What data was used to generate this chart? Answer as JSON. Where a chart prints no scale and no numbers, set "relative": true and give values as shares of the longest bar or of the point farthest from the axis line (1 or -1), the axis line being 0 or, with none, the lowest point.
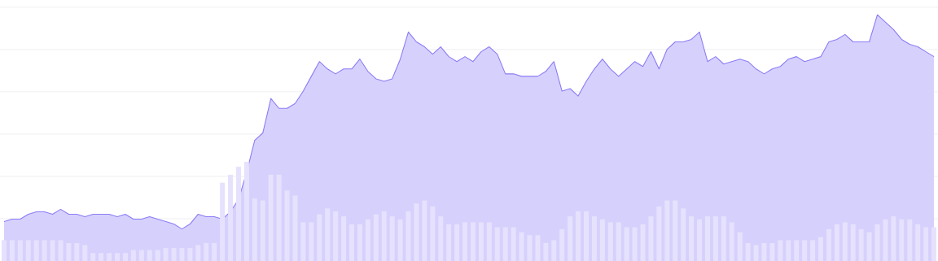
{
  "chart_data": [
    {
      "type": "area",
      "relative": true,
      "grid": "y",
      "color": "#8b7cf6",
      "categories": [
        null,
        null,
        null,
        null,
        null,
        null,
        null,
        null,
        null,
        null,
        null,
        null,
        null,
        null,
        null,
        null,
        null,
        null,
        null,
        null,
        null,
        null,
        null,
        null,
        null,
        null,
        null,
        null,
        null,
        null,
        null,
        null,
        null,
        null,
        null,
        null,
        null,
        null,
        null,
        null,
        null,
        null,
        null,
        null,
        null,
        null,
        null,
        null,
        null,
        null,
        null,
        null,
        null,
        null,
        null,
        null,
        null,
        null,
        null,
        null,
        null,
        null,
        null,
        null,
        null,
        null,
        null,
        null,
        null,
        null,
        null,
        null,
        null,
        null,
        null,
        null,
        null,
        null,
        null,
        null,
        null,
        null,
        null,
        null,
        null,
        null,
        null,
        null,
        null,
        null,
        null,
        null,
        null,
        null,
        null,
        null,
        null,
        null,
        null,
        null,
        null,
        null,
        null,
        null,
        null,
        null,
        null,
        null,
        null,
        null,
        null,
        null,
        null,
        null,
        null,
        null
      ],
      "values": [
        0.16,
        0.17,
        0.17,
        0.19,
        0.2,
        0.2,
        0.19,
        0.21,
        0.19,
        0.19,
        0.18,
        0.19,
        0.19,
        0.19,
        0.18,
        0.19,
        0.17,
        0.17,
        0.18,
        0.17,
        0.16,
        0.15,
        0.13,
        0.15,
        0.19,
        0.18,
        0.18,
        0.17,
        0.2,
        0.25,
        0.36,
        0.49,
        0.52,
        0.66,
        0.62,
        0.62,
        0.64,
        0.69,
        0.75,
        0.81,
        0.78,
        0.76,
        0.78,
        0.78,
        0.82,
        0.77,
        0.74,
        0.73,
        0.74,
        0.82,
        0.93,
        0.89,
        0.87,
        0.84,
        0.87,
        0.83,
        0.81,
        0.83,
        0.81,
        0.85,
        0.87,
        0.84,
        0.76,
        0.76,
        0.75,
        0.75,
        0.75,
        0.77,
        0.81,
        0.69,
        0.7,
        0.67,
        0.73,
        0.78,
        0.82,
        0.78,
        0.75,
        0.78,
        0.81,
        0.79,
        0.85,
        0.78,
        0.86,
        0.89,
        0.89,
        0.9,
        0.93,
        0.81,
        0.83,
        0.8,
        0.81,
        0.82,
        0.81,
        0.78,
        0.76,
        0.78,
        0.79,
        0.82,
        0.83,
        0.81,
        0.82,
        0.83,
        0.89,
        0.9,
        0.92,
        0.89,
        0.89,
        0.89,
        1.0,
        0.97,
        0.94,
        0.9,
        0.88,
        0.87,
        0.85,
        0.83
      ]
    },
    {
      "type": "bar",
      "relative": true,
      "color": "#e6e2fd",
      "categories": [
        null,
        null,
        null,
        null,
        null,
        null,
        null,
        null,
        null,
        null,
        null,
        null,
        null,
        null,
        null,
        null,
        null,
        null,
        null,
        null,
        null,
        null,
        null,
        null,
        null,
        null,
        null,
        null,
        null,
        null,
        null,
        null,
        null,
        null,
        null,
        null,
        null,
        null,
        null,
        null,
        null,
        null,
        null,
        null,
        null,
        null,
        null,
        null,
        null,
        null,
        null,
        null,
        null,
        null,
        null,
        null,
        null,
        null,
        null,
        null,
        null,
        null,
        null,
        null,
        null,
        null,
        null,
        null,
        null,
        null,
        null,
        null,
        null,
        null,
        null,
        null,
        null,
        null,
        null,
        null,
        null,
        null,
        null,
        null,
        null,
        null,
        null,
        null,
        null,
        null,
        null,
        null,
        null,
        null,
        null,
        null,
        null,
        null,
        null,
        null,
        null,
        null,
        null,
        null,
        null,
        null,
        null,
        null,
        null,
        null,
        null,
        null,
        null,
        null,
        null,
        null
      ],
      "values": [
        0.21,
        0.21,
        0.21,
        0.21,
        0.21,
        0.21,
        0.21,
        0.21,
        0.18,
        0.18,
        0.16,
        0.08,
        0.08,
        0.08,
        0.08,
        0.08,
        0.11,
        0.11,
        0.11,
        0.11,
        0.13,
        0.13,
        0.13,
        0.13,
        0.16,
        0.18,
        0.18,
        0.79,
        0.87,
        0.95,
        1.0,
        0.63,
        0.61,
        0.87,
        0.87,
        0.71,
        0.66,
        0.39,
        0.39,
        0.47,
        0.53,
        0.5,
        0.45,
        0.37,
        0.37,
        0.42,
        0.47,
        0.5,
        0.45,
        0.42,
        0.5,
        0.58,
        0.61,
        0.55,
        0.45,
        0.37,
        0.37,
        0.39,
        0.39,
        0.39,
        0.39,
        0.34,
        0.34,
        0.34,
        0.29,
        0.26,
        0.26,
        0.18,
        0.21,
        0.32,
        0.45,
        0.5,
        0.5,
        0.45,
        0.42,
        0.39,
        0.39,
        0.34,
        0.34,
        0.37,
        0.45,
        0.55,
        0.61,
        0.61,
        0.53,
        0.45,
        0.42,
        0.45,
        0.45,
        0.45,
        0.39,
        0.29,
        0.18,
        0.16,
        0.18,
        0.18,
        0.21,
        0.21,
        0.21,
        0.21,
        0.21,
        0.24,
        0.32,
        0.37,
        0.39,
        0.37,
        0.32,
        0.29,
        0.37,
        0.42,
        0.45,
        0.42,
        0.42,
        0.37,
        0.34,
        0.34
      ]
    }
  ]
}
